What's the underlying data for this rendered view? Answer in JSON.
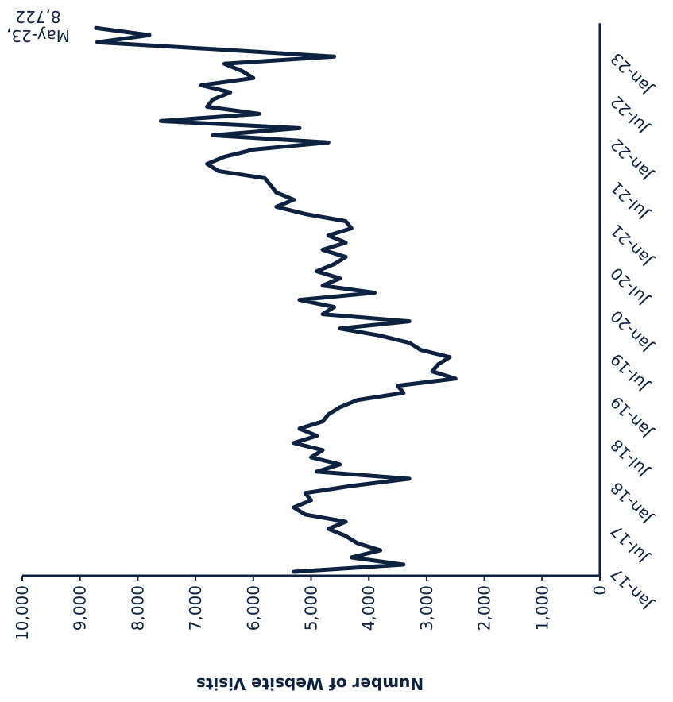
{
  "chart_data": {
    "type": "line",
    "y_axis_label": "Number of Website Visits",
    "annotation": [
      "May-23,",
      "8,722"
    ],
    "categories": [
      "Jan-17",
      null,
      null,
      null,
      null,
      null,
      "Jul-17",
      null,
      null,
      null,
      null,
      null,
      "Jan-18",
      null,
      null,
      null,
      null,
      null,
      "Jul-18",
      null,
      null,
      null,
      null,
      null,
      "Jan-19",
      null,
      null,
      null,
      null,
      null,
      "Jul-19",
      null,
      null,
      null,
      null,
      null,
      "Jan-20",
      null,
      null,
      null,
      null,
      null,
      "Jul-20",
      null,
      null,
      null,
      null,
      null,
      "Jan-21",
      null,
      null,
      null,
      null,
      null,
      "Jul-21",
      null,
      null,
      null,
      null,
      null,
      "Jan-22",
      null,
      null,
      null,
      null,
      null,
      "Jul-22",
      null,
      null,
      null,
      null,
      null,
      "Jan-23",
      null,
      null,
      null,
      null
    ],
    "series": [
      {
        "name": "Number of Website Visits",
        "color": "#0d2240",
        "values": [
          5300,
          3400,
          4300,
          3800,
          4200,
          4400,
          4700,
          4400,
          5100,
          5300,
          5000,
          5100,
          4300,
          3300,
          4900,
          4500,
          5000,
          4800,
          5300,
          4900,
          5200,
          4800,
          4700,
          4500,
          4200,
          3400,
          3500,
          2500,
          2900,
          2800,
          2600,
          3100,
          3300,
          3800,
          4500,
          3300,
          4800,
          4600,
          5200,
          3900,
          4800,
          4500,
          4900,
          4600,
          4400,
          4800,
          4400,
          4700,
          4300,
          4400,
          5100,
          5600,
          5300,
          5600,
          5700,
          5800,
          6600,
          6800,
          6500,
          6000,
          4700,
          6700,
          5200,
          7600,
          5900,
          6800,
          6700,
          6400,
          6900,
          6000,
          6200,
          6500,
          4600,
          6600,
          8700,
          7800,
          8722
        ]
      }
    ],
    "ylim": [
      0,
      10000
    ],
    "yticks": [
      0,
      {
        "value": 1000,
        "label": "1,000"
      },
      {
        "value": 2000,
        "label": "2,000"
      },
      {
        "value": 3000,
        "label": "3,000"
      },
      {
        "value": 4000,
        "label": "4,000"
      },
      {
        "value": 5000,
        "label": "5,000"
      },
      {
        "value": 6000,
        "label": "6,000"
      },
      {
        "value": 7000,
        "label": "7,000"
      },
      {
        "value": 8000,
        "label": "8,000"
      },
      {
        "value": 9000,
        "label": "9,000"
      },
      {
        "value": 10000,
        "label": "10,000"
      }
    ]
  }
}
